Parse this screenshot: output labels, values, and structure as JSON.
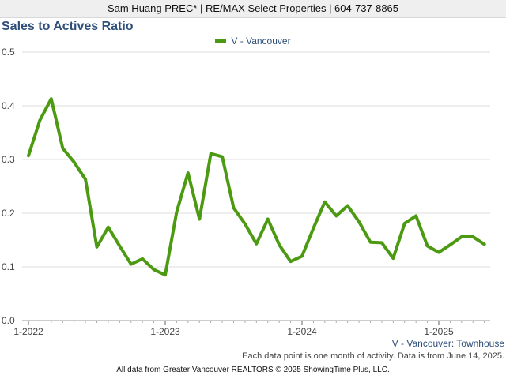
{
  "header": {
    "text": "Sam Huang PREC* | RE/MAX Select Properties | 604-737-8865"
  },
  "footer": {
    "series_caption": "V - Vancouver: Townhouse",
    "note": "Each data point is one month of activity. Data is from June 14, 2025.",
    "credit": "All data from Greater Vancouver REALTORS © 2025 ShowingTime Plus, LLC."
  },
  "colors": {
    "line": "#4c9a12",
    "title": "#2e4f7a",
    "grid": "#dddddd"
  },
  "chart_data": {
    "type": "line",
    "title": "Sales to Actives Ratio",
    "legend_position": "top-center",
    "grid": true,
    "ylim": [
      0,
      0.5
    ],
    "yticks": [
      0.0,
      0.1,
      0.2,
      0.3,
      0.4,
      0.5
    ],
    "ytick_labels": [
      "0.0",
      "0.1",
      "0.2",
      "0.3",
      "0.4",
      "0.5"
    ],
    "xticks": [
      "1-2022",
      "1-2023",
      "1-2024",
      "1-2025"
    ],
    "x_start": "1-2022",
    "x_end": "5-2025",
    "series": [
      {
        "name": "V - Vancouver",
        "color": "#4c9a12",
        "values": [
          0.307,
          0.373,
          0.413,
          0.321,
          0.295,
          0.263,
          0.137,
          0.174,
          0.139,
          0.105,
          0.115,
          0.095,
          0.085,
          0.202,
          0.275,
          0.189,
          0.311,
          0.305,
          0.21,
          0.18,
          0.143,
          0.189,
          0.141,
          0.11,
          0.12,
          0.172,
          0.221,
          0.195,
          0.214,
          0.184,
          0.146,
          0.145,
          0.116,
          0.181,
          0.195,
          0.139,
          0.127,
          0.141,
          0.156,
          0.156,
          0.142
        ]
      }
    ]
  }
}
